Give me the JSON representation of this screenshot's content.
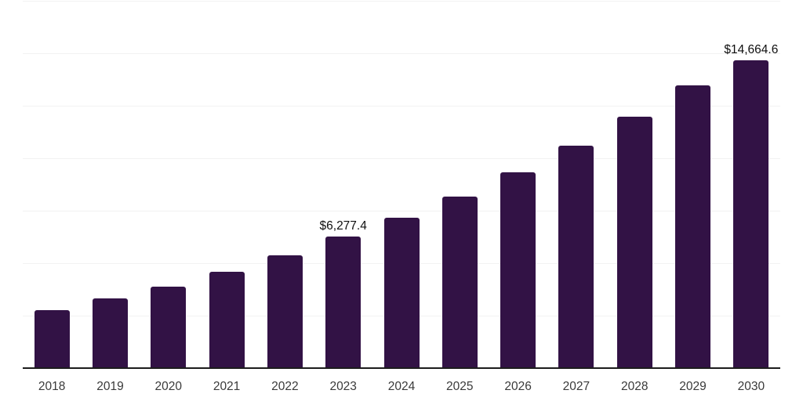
{
  "chart_data": {
    "type": "bar",
    "title": "",
    "xlabel": "",
    "ylabel": "",
    "categories": [
      "2018",
      "2019",
      "2020",
      "2021",
      "2022",
      "2023",
      "2024",
      "2025",
      "2026",
      "2027",
      "2028",
      "2029",
      "2030"
    ],
    "values": [
      2767,
      3310,
      3890,
      4600,
      5385,
      6277.4,
      7180,
      8190,
      9310,
      10580,
      11965,
      13460,
      14664.6
    ],
    "data_labels": {
      "2023": "$6,277.4",
      "2030": "$14,664.6"
    },
    "ylim": [
      0,
      17500
    ],
    "gridline_step": 2500,
    "grid": "horizontal-only",
    "legend": "none",
    "y_axis_tick_labels_visible": false,
    "colors": {
      "bar": "#321245",
      "axis": "#1c1c1c",
      "gridline": "#f2f2f2",
      "tick_label": "#3a3a3a",
      "data_label": "#0f0f0f",
      "background": "#ffffff"
    }
  }
}
